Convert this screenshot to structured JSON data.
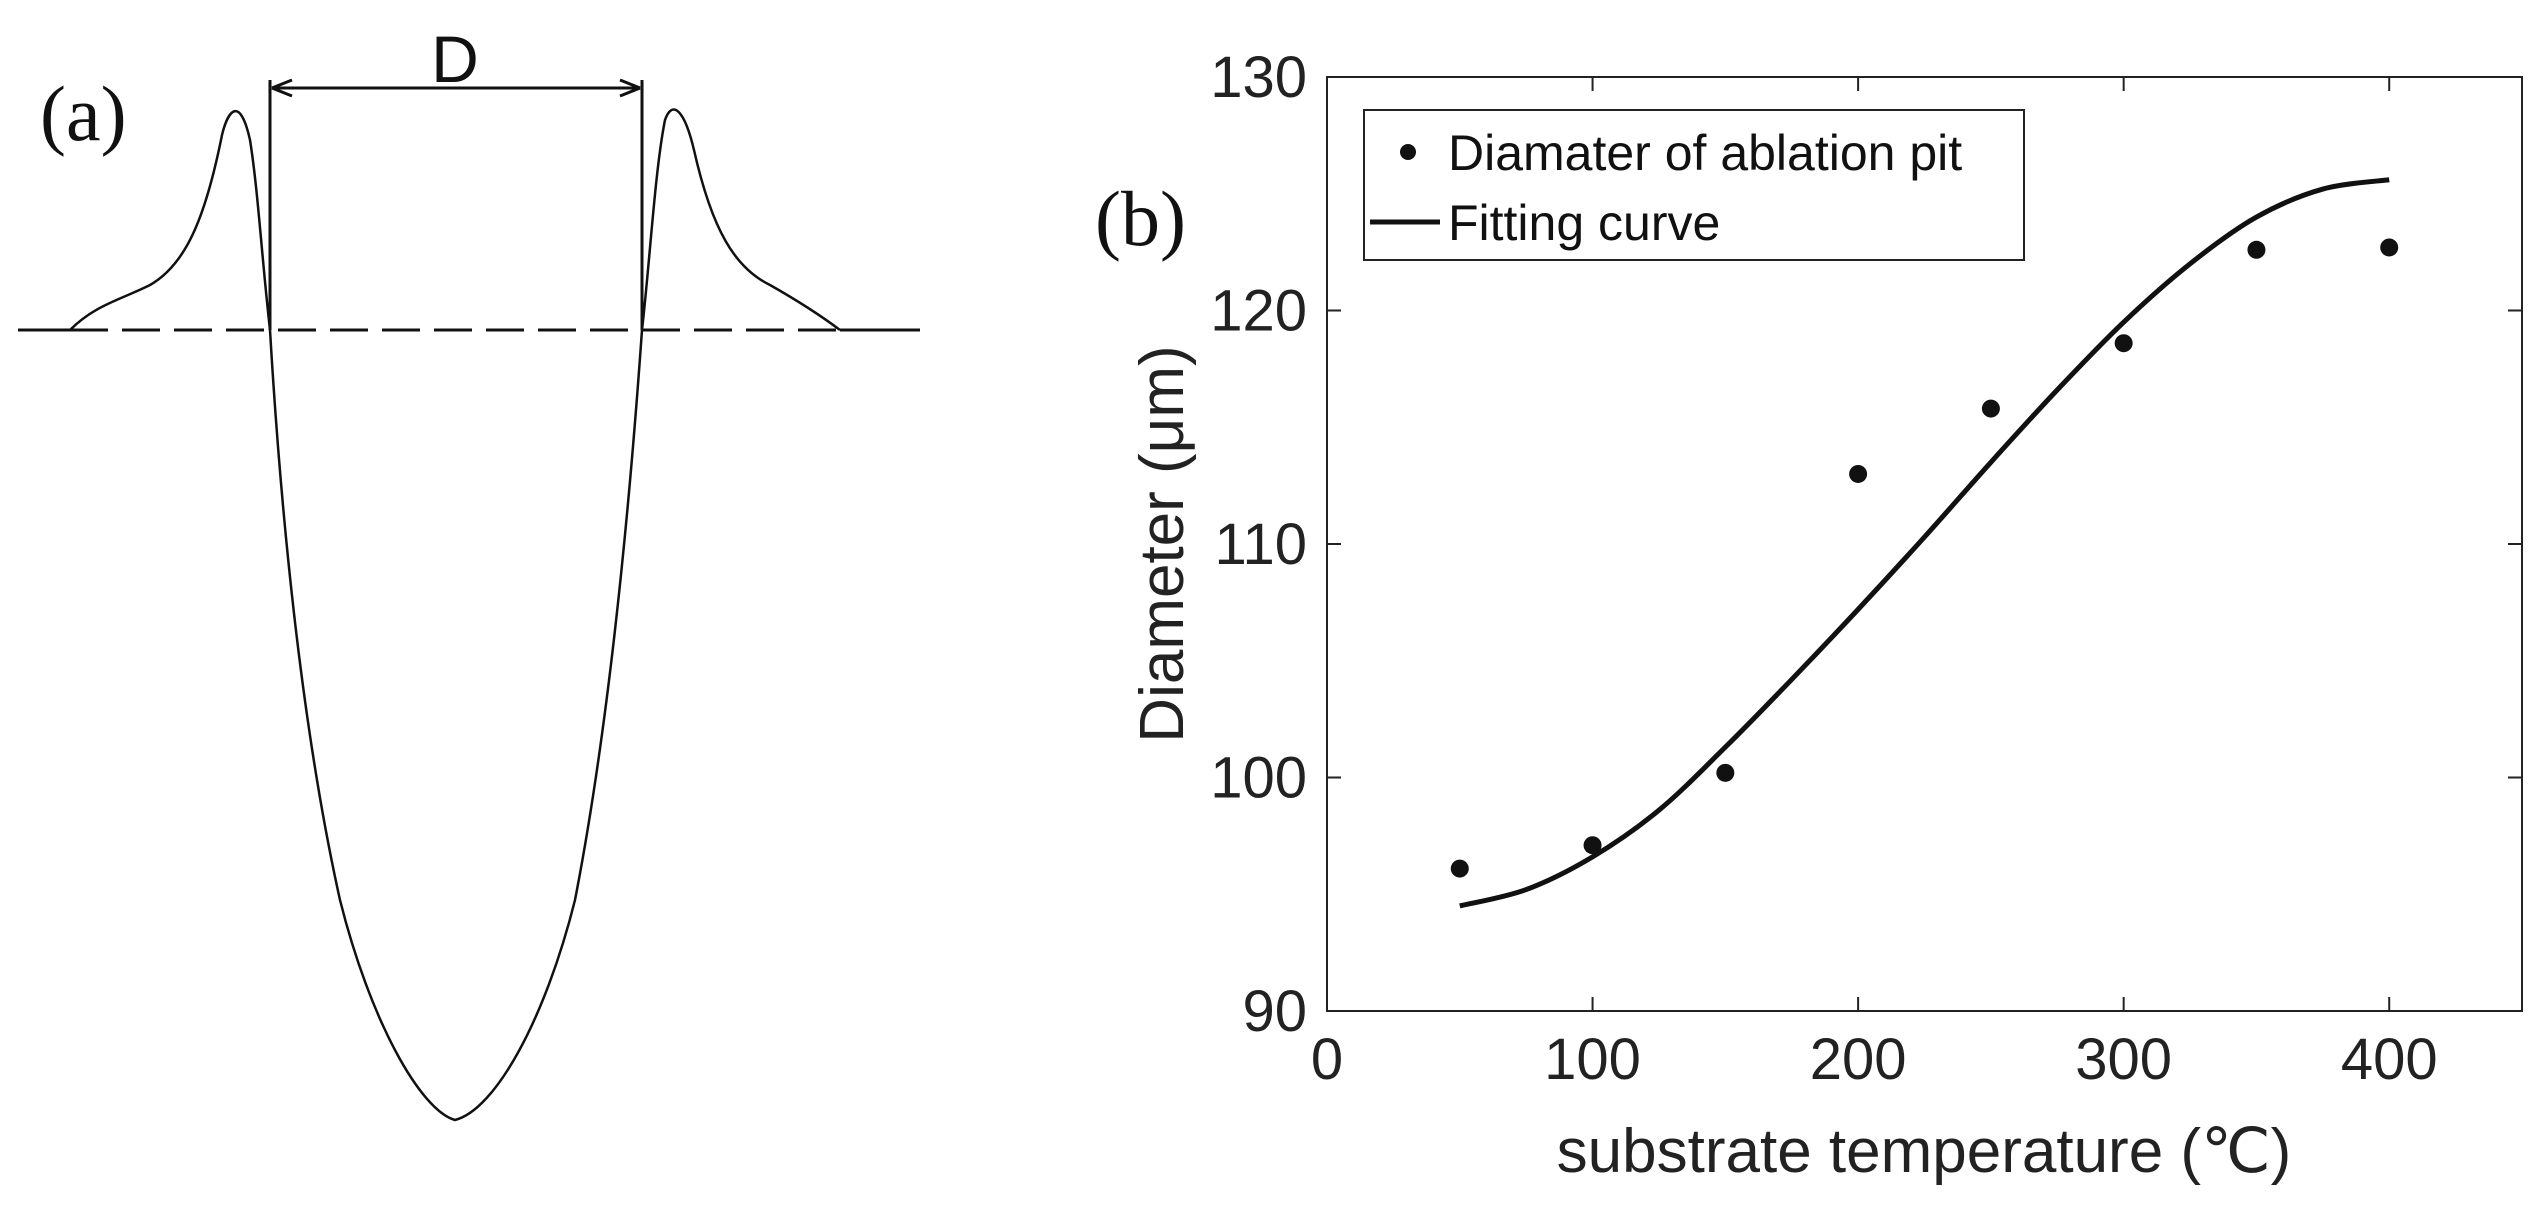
{
  "panel_a": {
    "label": "(a)",
    "dimension_label": "D"
  },
  "panel_b": {
    "label": "(b)"
  },
  "chart_data": {
    "type": "scatter",
    "title": "",
    "xlabel": "substrate temperature (℃)",
    "ylabel": "Diameter (μm)",
    "xlim": [
      0,
      450
    ],
    "ylim": [
      90,
      130
    ],
    "xticks": [
      0,
      100,
      200,
      300,
      400
    ],
    "yticks": [
      90,
      100,
      110,
      120,
      130
    ],
    "grid": false,
    "legend_position": "top-left",
    "series": [
      {
        "name": "Diamater of ablation pit",
        "kind": "markers",
        "x": [
          50,
          100,
          150,
          200,
          250,
          300,
          350,
          400
        ],
        "y": [
          96.1,
          97.1,
          100.2,
          113.0,
          115.8,
          118.6,
          122.6,
          122.7
        ]
      },
      {
        "name": "Fitting curve",
        "kind": "line",
        "x": [
          50,
          75,
          100,
          125,
          150,
          175,
          200,
          225,
          250,
          275,
          300,
          325,
          350,
          375,
          400
        ],
        "y": [
          94.5,
          95.2,
          96.6,
          98.6,
          101.3,
          104.2,
          107.2,
          110.3,
          113.5,
          116.6,
          119.5,
          122.0,
          124.0,
          125.2,
          125.6
        ]
      }
    ]
  }
}
